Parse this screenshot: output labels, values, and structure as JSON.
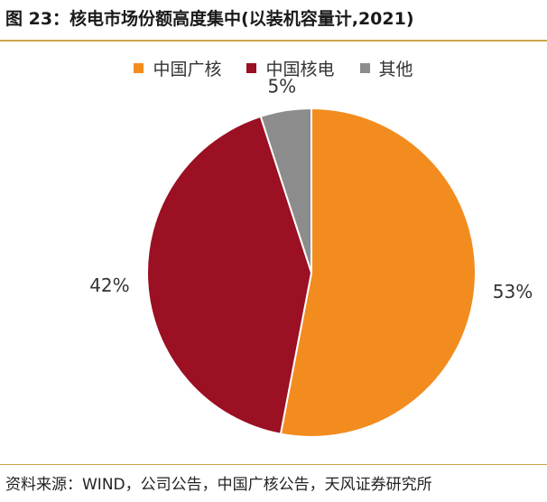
{
  "header": {
    "title": "图 23：核电市场份额高度集中(以装机容量计,2021)"
  },
  "footer": {
    "source": "资料来源：WIND，公司公告，中国广核公告，天风证券研究所"
  },
  "chart_data": {
    "type": "pie",
    "title": "图 23：核电市场份额高度集中(以装机容量计,2021)",
    "legend_position": "top",
    "series": [
      {
        "name": "中国广核",
        "value": 53,
        "label": "53%",
        "color": "#f28c1f"
      },
      {
        "name": "中国核电",
        "value": 42,
        "label": "42%",
        "color": "#9b1023"
      },
      {
        "name": "其他",
        "value": 5,
        "label": "5%",
        "color": "#8c8c8c"
      }
    ]
  }
}
